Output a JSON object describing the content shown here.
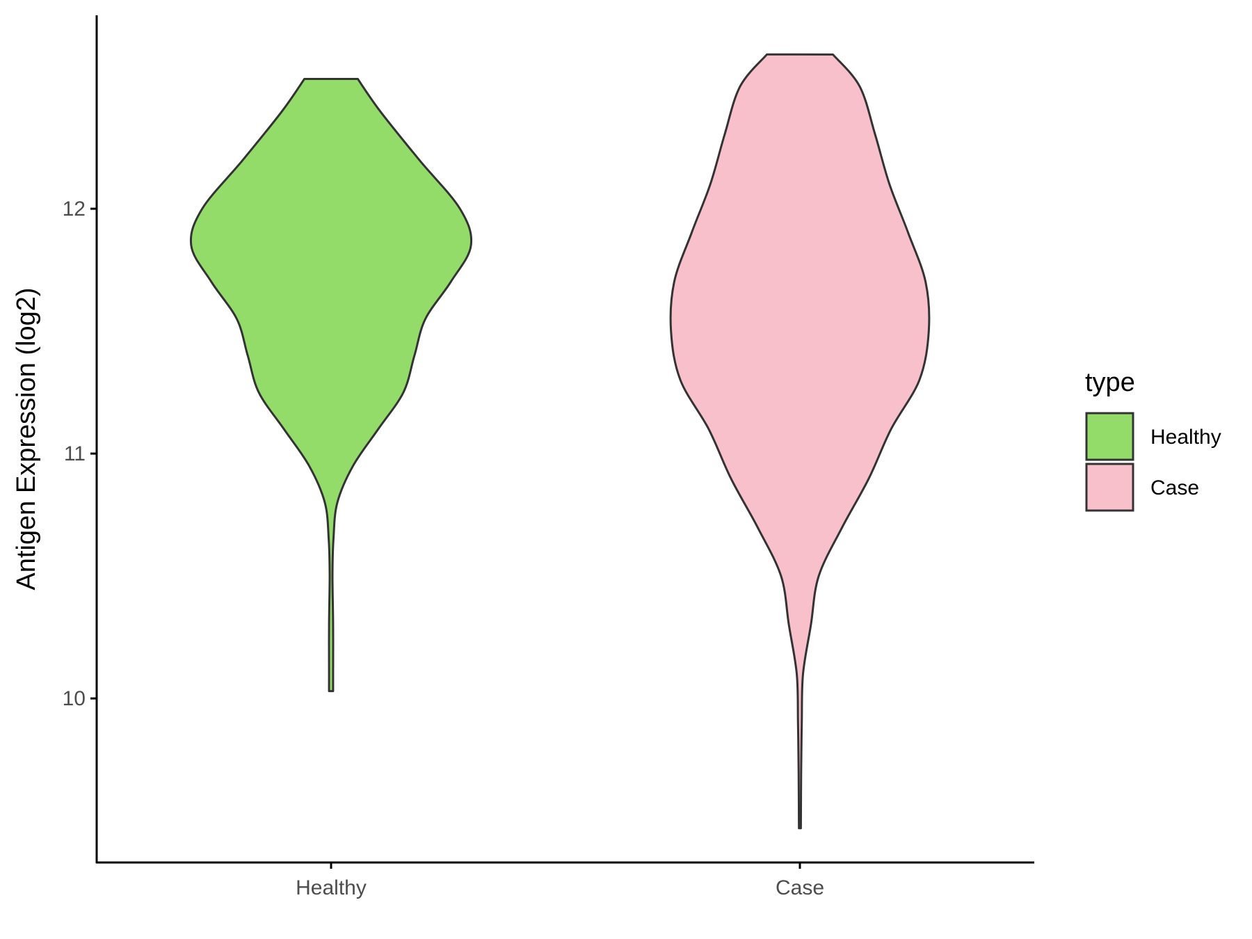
{
  "chart_data": {
    "type": "violin",
    "title": "",
    "xlabel": "",
    "ylabel": "Antigen Expression (log2)",
    "ylim": [
      9.33,
      12.79
    ],
    "yticks": [
      10,
      11,
      12
    ],
    "ytick_labels": [
      "10",
      "11",
      "12"
    ],
    "categories": [
      "Healthy",
      "Case"
    ],
    "legend": {
      "title": "type",
      "position": "right",
      "entries": [
        {
          "label": "Healthy",
          "color": "#93dc6a"
        },
        {
          "label": "Case",
          "color": "#f7c0cb"
        }
      ]
    },
    "series": [
      {
        "name": "Healthy",
        "color": "#93dc6a",
        "min": 10.03,
        "max": 12.53,
        "density_profile": [
          [
            12.53,
            0.17
          ],
          [
            12.4,
            0.31
          ],
          [
            12.2,
            0.56
          ],
          [
            12.0,
            0.82
          ],
          [
            11.85,
            0.89
          ],
          [
            11.7,
            0.76
          ],
          [
            11.55,
            0.6
          ],
          [
            11.4,
            0.53
          ],
          [
            11.25,
            0.46
          ],
          [
            11.1,
            0.3
          ],
          [
            10.95,
            0.14
          ],
          [
            10.8,
            0.04
          ],
          [
            10.65,
            0.015
          ],
          [
            10.5,
            0.009
          ],
          [
            10.3,
            0.013
          ],
          [
            10.1,
            0.013
          ],
          [
            10.03,
            0.013
          ]
        ]
      },
      {
        "name": "Case",
        "color": "#f7c0cb",
        "min": 9.47,
        "max": 12.63,
        "density_profile": [
          [
            12.63,
            0.21
          ],
          [
            12.5,
            0.38
          ],
          [
            12.3,
            0.48
          ],
          [
            12.1,
            0.57
          ],
          [
            11.9,
            0.69
          ],
          [
            11.7,
            0.8
          ],
          [
            11.5,
            0.82
          ],
          [
            11.3,
            0.76
          ],
          [
            11.1,
            0.58
          ],
          [
            10.9,
            0.44
          ],
          [
            10.7,
            0.27
          ],
          [
            10.5,
            0.12
          ],
          [
            10.3,
            0.07
          ],
          [
            10.1,
            0.02
          ],
          [
            9.9,
            0.012
          ],
          [
            9.7,
            0.008
          ],
          [
            9.47,
            0.006
          ]
        ]
      }
    ]
  }
}
